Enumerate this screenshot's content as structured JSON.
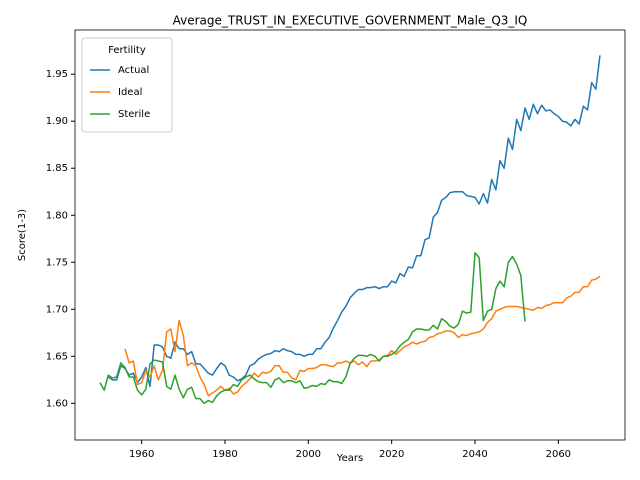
{
  "chart_data": {
    "type": "line",
    "title": "Average_TRUST_IN_EXECUTIVE_GOVERNMENT_Male_Q3_IQ",
    "xlabel": "Years",
    "ylabel": "Score(1-3)",
    "legend_title": "Fertility",
    "legend_loc": "upper left",
    "xlim": [
      1944,
      2076
    ],
    "ylim": [
      1.561,
      1.997
    ],
    "xticks": [
      1960,
      1980,
      2000,
      2020,
      2040,
      2060
    ],
    "yticks": [
      {
        "value": 1.6,
        "label": "1.60"
      },
      1.65,
      {
        "value": 1.7,
        "label": "1.70"
      },
      1.75,
      {
        "value": 1.8,
        "label": "1.80"
      },
      1.85,
      {
        "value": 1.9,
        "label": "1.90"
      },
      1.95
    ],
    "x": [
      1950,
      1951,
      1952,
      1953,
      1954,
      1955,
      1956,
      1957,
      1958,
      1959,
      1960,
      1961,
      1962,
      1963,
      1964,
      1965,
      1966,
      1967,
      1968,
      1969,
      1970,
      1971,
      1972,
      1973,
      1974,
      1975,
      1976,
      1977,
      1978,
      1979,
      1980,
      1981,
      1982,
      1983,
      1984,
      1985,
      1986,
      1987,
      1988,
      1989,
      1990,
      1991,
      1992,
      1993,
      1994,
      1995,
      1996,
      1997,
      1998,
      1999,
      2000,
      2001,
      2002,
      2003,
      2004,
      2005,
      2006,
      2007,
      2008,
      2009,
      2010,
      2011,
      2012,
      2013,
      2014,
      2015,
      2016,
      2017,
      2018,
      2019,
      2020,
      2021,
      2022,
      2023,
      2024,
      2025,
      2026,
      2027,
      2028,
      2029,
      2030,
      2031,
      2032,
      2033,
      2034,
      2035,
      2036,
      2037,
      2038,
      2039,
      2040,
      2041,
      2042,
      2043,
      2044,
      2045,
      2046,
      2047,
      2048,
      2049,
      2050,
      2051,
      2052,
      2053,
      2054,
      2055,
      2056,
      2057,
      2058,
      2059,
      2060,
      2061,
      2062,
      2063,
      2064,
      2065,
      2066,
      2067,
      2068,
      2069,
      2070
    ],
    "series": [
      {
        "name": "Actual",
        "color": "#1f77b4",
        "values": [
          null,
          null,
          1.628,
          1.625,
          1.625,
          1.64,
          1.637,
          1.63,
          1.632,
          1.622,
          1.628,
          1.638,
          1.618,
          1.662,
          1.662,
          1.66,
          1.65,
          1.648,
          1.665,
          1.658,
          1.658,
          1.652,
          1.655,
          1.642,
          1.642,
          1.637,
          1.632,
          1.63,
          1.637,
          1.643,
          1.64,
          1.63,
          1.628,
          1.624,
          1.626,
          1.63,
          1.64,
          1.642,
          1.647,
          1.65,
          1.652,
          1.653,
          1.656,
          1.655,
          1.658,
          1.656,
          1.655,
          1.652,
          1.652,
          1.65,
          1.652,
          1.652,
          1.658,
          1.658,
          1.665,
          1.67,
          1.68,
          1.688,
          1.697,
          1.703,
          1.712,
          1.717,
          1.721,
          1.721,
          1.723,
          1.723,
          1.724,
          1.722,
          1.724,
          1.724,
          1.73,
          1.728,
          1.738,
          1.735,
          1.745,
          1.744,
          1.757,
          1.757,
          1.774,
          1.776,
          1.798,
          1.803,
          1.816,
          1.819,
          1.824,
          1.825,
          1.825,
          1.825,
          1.821,
          1.82,
          1.819,
          1.812,
          1.823,
          1.813,
          1.838,
          1.827,
          1.858,
          1.85,
          1.882,
          1.87,
          1.902,
          1.89,
          1.914,
          1.902,
          1.918,
          1.908,
          1.917,
          1.911,
          1.912,
          1.908,
          1.905,
          1.9,
          1.899,
          1.895,
          1.902,
          1.897,
          1.916,
          1.912,
          1.941,
          1.934,
          1.97
        ]
      },
      {
        "name": "Ideal",
        "color": "#ff7f0e",
        "values": [
          null,
          null,
          null,
          null,
          null,
          null,
          1.658,
          1.643,
          1.645,
          1.62,
          1.622,
          1.635,
          1.628,
          1.64,
          1.625,
          1.635,
          1.676,
          1.679,
          1.655,
          1.688,
          1.672,
          1.64,
          1.643,
          1.64,
          1.628,
          1.62,
          1.608,
          1.611,
          1.614,
          1.618,
          1.614,
          1.616,
          1.61,
          1.612,
          1.618,
          1.622,
          1.626,
          1.632,
          1.628,
          1.633,
          1.632,
          1.634,
          1.64,
          1.64,
          1.633,
          1.633,
          1.627,
          1.625,
          1.635,
          1.634,
          1.637,
          1.637,
          1.638,
          1.641,
          1.641,
          1.64,
          1.639,
          1.643,
          1.643,
          1.645,
          1.643,
          1.645,
          1.641,
          1.644,
          1.639,
          1.645,
          1.645,
          1.646,
          1.65,
          1.651,
          1.656,
          1.652,
          1.656,
          1.66,
          1.662,
          1.665,
          1.663,
          1.665,
          1.666,
          1.67,
          1.671,
          1.674,
          1.675,
          1.677,
          1.677,
          1.675,
          1.67,
          1.673,
          1.672,
          1.674,
          1.675,
          1.676,
          1.679,
          1.686,
          1.69,
          1.698,
          1.7,
          1.702,
          1.703,
          1.703,
          1.703,
          1.702,
          1.701,
          1.7,
          1.699,
          1.702,
          1.701,
          1.704,
          1.705,
          1.707,
          1.707,
          1.707,
          1.712,
          1.714,
          1.718,
          1.718,
          1.724,
          1.724,
          1.731,
          1.732,
          1.735
        ]
      },
      {
        "name": "Sterile",
        "color": "#2ca02c",
        "values": [
          1.622,
          1.614,
          1.63,
          1.627,
          1.628,
          1.643,
          1.638,
          1.628,
          1.628,
          1.614,
          1.609,
          1.615,
          1.642,
          1.646,
          1.645,
          1.644,
          1.618,
          1.615,
          1.63,
          1.615,
          1.606,
          1.615,
          1.617,
          1.605,
          1.605,
          1.6,
          1.603,
          1.601,
          1.608,
          1.612,
          1.614,
          1.614,
          1.62,
          1.618,
          1.625,
          1.628,
          1.63,
          1.626,
          1.623,
          1.622,
          1.622,
          1.617,
          1.625,
          1.627,
          1.622,
          1.624,
          1.624,
          1.622,
          1.624,
          1.616,
          1.617,
          1.619,
          1.618,
          1.621,
          1.62,
          1.625,
          1.623,
          1.623,
          1.621,
          1.628,
          1.642,
          1.648,
          1.651,
          1.651,
          1.65,
          1.652,
          1.65,
          1.645,
          1.65,
          1.65,
          1.652,
          1.655,
          1.661,
          1.665,
          1.668,
          1.676,
          1.679,
          1.679,
          1.678,
          1.678,
          1.683,
          1.679,
          1.69,
          1.687,
          1.682,
          1.68,
          1.684,
          1.698,
          1.696,
          1.697,
          1.76,
          1.755,
          1.688,
          1.698,
          1.7,
          1.722,
          1.73,
          1.724,
          1.75,
          1.756,
          1.748,
          1.736,
          1.687,
          null,
          null,
          null,
          null,
          null,
          null,
          null,
          null,
          null,
          null,
          null,
          null,
          null,
          null,
          null,
          null,
          null,
          null
        ]
      }
    ]
  }
}
